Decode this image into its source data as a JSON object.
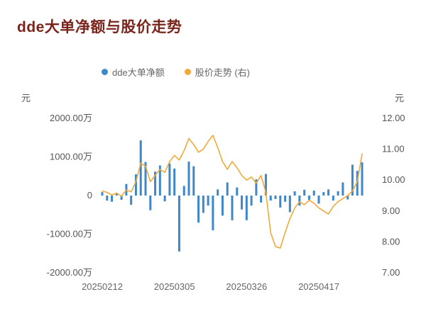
{
  "chart": {
    "title": "dde大单净额与股价走势",
    "legend": {
      "bar": "dde大单净额",
      "line": "股价走势 (右)"
    },
    "left_axis": {
      "unit": "元",
      "ticks": [
        "2000.00万",
        "1000.00万",
        "0",
        "-1000.00万",
        "-2000.00万"
      ],
      "tick_values": [
        2000,
        1000,
        0,
        -1000,
        -2000
      ]
    },
    "right_axis": {
      "unit": "元",
      "ticks": [
        "12.00",
        "11.00",
        "10.00",
        "9.00",
        "8.00",
        "7.00"
      ],
      "tick_values": [
        12,
        11,
        10,
        9,
        8,
        7
      ]
    },
    "x_axis": {
      "tick_labels": [
        "20250212",
        "20250305",
        "20250326",
        "20250417"
      ],
      "tick_indices": [
        0,
        15,
        30,
        45
      ]
    },
    "colors": {
      "bar": "#3e87c8",
      "line": "#f2a93b",
      "title": "#7a241c",
      "text": "#666666"
    }
  },
  "chart_data": {
    "type": "combo",
    "x": [
      "20250212",
      "20250213",
      "20250214",
      "20250217",
      "20250218",
      "20250219",
      "20250220",
      "20250221",
      "20250224",
      "20250225",
      "20250226",
      "20250227",
      "20250228",
      "20250303",
      "20250304",
      "20250305",
      "20250306",
      "20250307",
      "20250310",
      "20250311",
      "20250312",
      "20250313",
      "20250314",
      "20250317",
      "20250318",
      "20250319",
      "20250320",
      "20250321",
      "20250324",
      "20250325",
      "20250326",
      "20250327",
      "20250328",
      "20250331",
      "20250401",
      "20250402",
      "20250403",
      "20250407",
      "20250408",
      "20250409",
      "20250410",
      "20250411",
      "20250414",
      "20250415",
      "20250416",
      "20250417",
      "20250418",
      "20250421",
      "20250422",
      "20250423",
      "20250424",
      "20250425",
      "20250428",
      "20250429",
      "20250430"
    ],
    "series": [
      {
        "name": "dde大单净额",
        "type": "bar",
        "axis": "left",
        "unit": "万",
        "values": [
          90,
          -130,
          -160,
          60,
          -110,
          300,
          -240,
          550,
          1430,
          870,
          -380,
          620,
          780,
          -150,
          830,
          700,
          -1450,
          250,
          880,
          760,
          -700,
          -450,
          -260,
          -900,
          160,
          -520,
          340,
          -640,
          210,
          -360,
          -640,
          -260,
          420,
          -180,
          560,
          -130,
          -90,
          -310,
          -160,
          -430,
          110,
          -260,
          150,
          -110,
          130,
          -210,
          90,
          160,
          -130,
          110,
          340,
          -100,
          800,
          640,
          860
        ]
      },
      {
        "name": "股价走势",
        "type": "line",
        "axis": "right",
        "unit": "元",
        "values": [
          9.65,
          9.6,
          9.52,
          9.58,
          9.48,
          9.68,
          9.62,
          9.95,
          10.55,
          10.45,
          9.95,
          10.15,
          10.35,
          10.25,
          10.6,
          10.8,
          10.65,
          10.95,
          11.35,
          11.15,
          10.9,
          11.0,
          11.25,
          11.45,
          11.05,
          10.6,
          10.35,
          10.6,
          10.4,
          10.15,
          10.0,
          10.1,
          9.9,
          10.15,
          9.6,
          8.3,
          7.85,
          7.8,
          8.3,
          8.75,
          9.1,
          9.3,
          9.2,
          9.35,
          9.25,
          9.1,
          9.0,
          8.9,
          9.15,
          9.3,
          9.4,
          9.5,
          9.65,
          9.95,
          10.85
        ]
      }
    ],
    "left_ylim": [
      -2000,
      2000
    ],
    "right_ylim": [
      7,
      12
    ],
    "grid": false,
    "legend_position": "top"
  }
}
